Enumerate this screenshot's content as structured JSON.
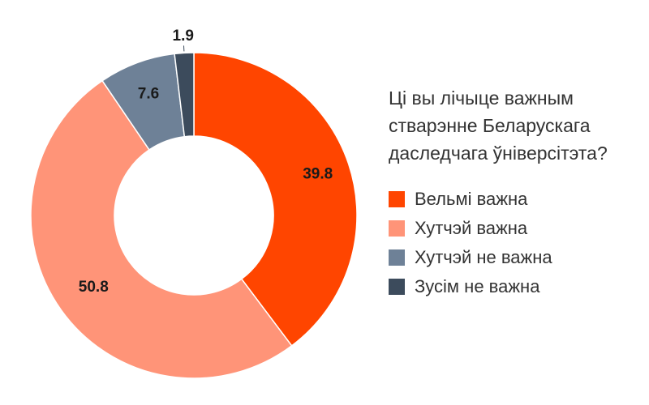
{
  "chart_data": {
    "type": "pie",
    "title_lines": [
      "Ці вы лічыце важным",
      "стварэнне Беларускага",
      "даследчага ўніверсітэта?"
    ],
    "slices": [
      {
        "label": "Вельмі важна",
        "value": 39.8,
        "display": "39.8",
        "color": "#FF4500"
      },
      {
        "label": "Хутчэй важна",
        "value": 50.8,
        "display": "50.8",
        "color": "#FF9478"
      },
      {
        "label": "Хутчэй не важна",
        "value": 7.6,
        "display": "7.6",
        "color": "#6E8197"
      },
      {
        "label": "Зусім не важна",
        "value": 1.9,
        "display": "1.9",
        "color": "#3C4B5C"
      }
    ],
    "donut": true,
    "legend_position": "right"
  }
}
